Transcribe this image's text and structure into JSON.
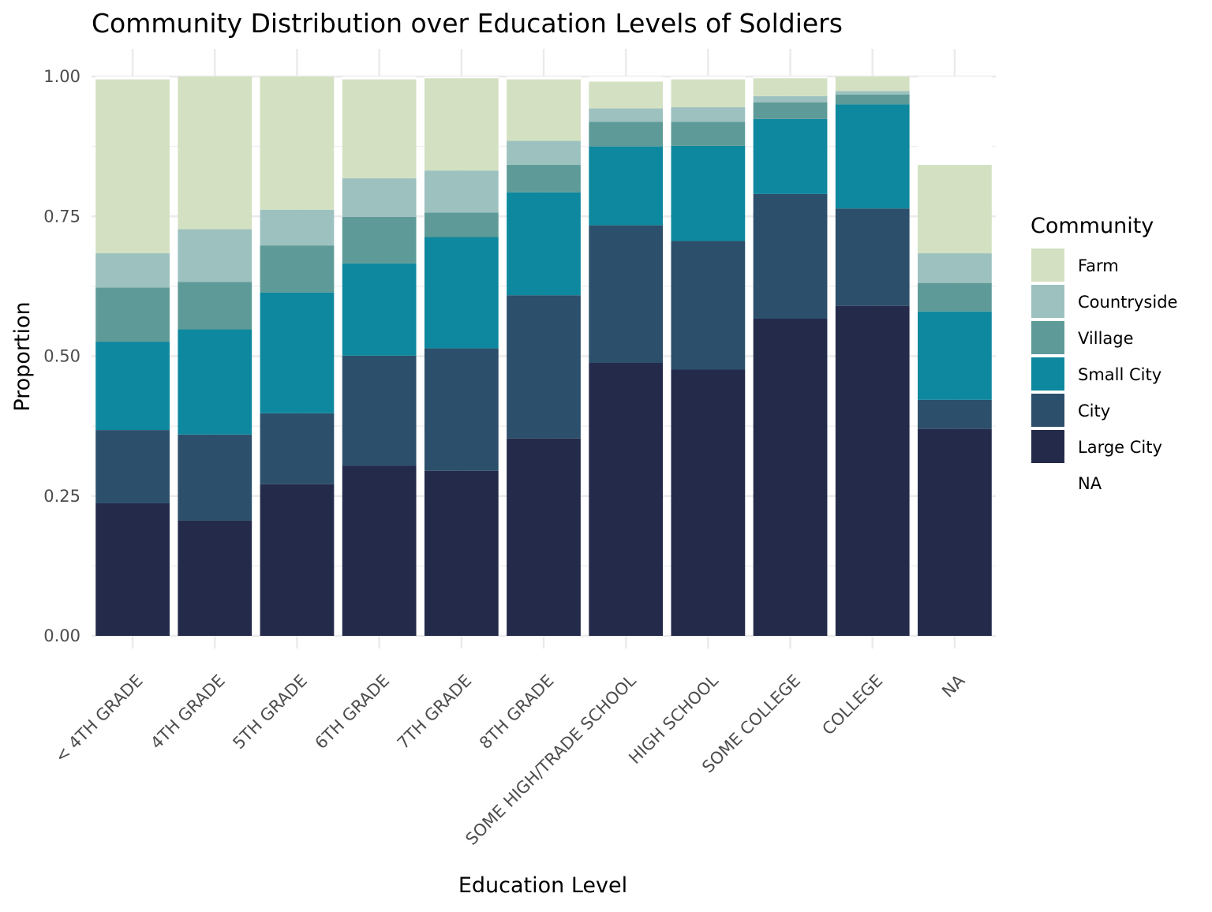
{
  "chart_data": {
    "type": "bar",
    "stacked": true,
    "title": "Community Distribution over Education Levels of Soldiers",
    "xlabel": "Education Level",
    "ylabel": "Proportion",
    "ylim": [
      0,
      1
    ],
    "yticks": [
      "0.00",
      "0.25",
      "0.50",
      "0.75",
      "1.00"
    ],
    "yticks_values": [
      0,
      0.25,
      0.5,
      0.75,
      1.0
    ],
    "grid": true,
    "categories": [
      "< 4TH GRADE",
      "4TH GRADE",
      "5TH GRADE",
      "6TH GRADE",
      "7TH GRADE",
      "8TH GRADE",
      "SOME HIGH/TRADE SCHOOL",
      "HIGH SCHOOL",
      "SOME COLLEGE",
      "COLLEGE",
      "NA"
    ],
    "legend": {
      "title": "Community",
      "position": "right",
      "entries": [
        "Farm",
        "Countryside",
        "Village",
        "Small City",
        "City",
        "Large City",
        "NA"
      ]
    },
    "series": [
      {
        "name": "Large City",
        "color": "#242b4a",
        "values": [
          0.237,
          0.206,
          0.271,
          0.304,
          0.295,
          0.353,
          0.488,
          0.476,
          0.567,
          0.59,
          0.37
        ]
      },
      {
        "name": "City",
        "color": "#2c4f6b",
        "values": [
          0.131,
          0.154,
          0.127,
          0.197,
          0.219,
          0.256,
          0.246,
          0.23,
          0.223,
          0.174,
          0.052
        ]
      },
      {
        "name": "Small City",
        "color": "#0e889e",
        "values": [
          0.158,
          0.188,
          0.216,
          0.165,
          0.199,
          0.184,
          0.141,
          0.17,
          0.134,
          0.186,
          0.158
        ]
      },
      {
        "name": "Village",
        "color": "#5e9b98",
        "values": [
          0.097,
          0.085,
          0.084,
          0.083,
          0.044,
          0.049,
          0.044,
          0.043,
          0.03,
          0.018,
          0.051
        ]
      },
      {
        "name": "Countryside",
        "color": "#9dc1bf",
        "values": [
          0.061,
          0.094,
          0.064,
          0.069,
          0.075,
          0.043,
          0.024,
          0.026,
          0.011,
          0.006,
          0.053
        ]
      },
      {
        "name": "Farm",
        "color": "#d3e1c2",
        "values": [
          0.311,
          0.273,
          0.238,
          0.177,
          0.165,
          0.11,
          0.048,
          0.05,
          0.032,
          0.026,
          0.158
        ]
      },
      {
        "name": "NA",
        "color": "#ffffff",
        "values": [
          0.005,
          0.0,
          0.0,
          0.005,
          0.003,
          0.005,
          0.009,
          0.005,
          0.003,
          0.0,
          0.158
        ]
      }
    ]
  }
}
